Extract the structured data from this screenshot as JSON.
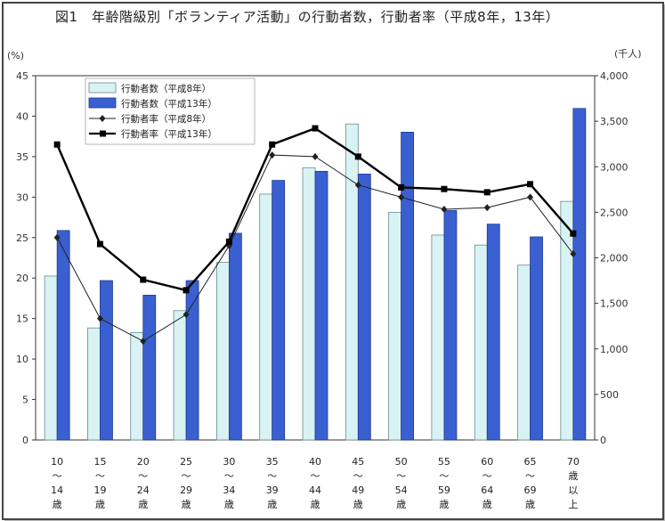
{
  "chart_data": {
    "type": "bar",
    "title": "図1　年齢階級別「ボランティア活動」の行動者数，行動者率（平成8年，13年）",
    "left_axis_unit": "(%)",
    "right_axis_unit": "(千人)",
    "y_left": {
      "min": 0,
      "max": 45,
      "step": 5,
      "ticks": [
        "0",
        "5",
        "10",
        "15",
        "20",
        "25",
        "30",
        "35",
        "40",
        "45"
      ]
    },
    "y_right": {
      "min": 0,
      "max": 4000,
      "step": 500,
      "ticks": [
        "0",
        "500",
        "1,000",
        "1,500",
        "2,000",
        "2,500",
        "3,000",
        "3,500",
        "4,000"
      ]
    },
    "grid": false,
    "legend_position": "top-left",
    "categories": [
      [
        "10",
        "～",
        "14",
        "歳"
      ],
      [
        "15",
        "～",
        "19",
        "歳"
      ],
      [
        "20",
        "～",
        "24",
        "歳"
      ],
      [
        "25",
        "～",
        "29",
        "歳"
      ],
      [
        "30",
        "～",
        "34",
        "歳"
      ],
      [
        "35",
        "～",
        "39",
        "歳"
      ],
      [
        "40",
        "～",
        "44",
        "歳"
      ],
      [
        "45",
        "～",
        "49",
        "歳"
      ],
      [
        "50",
        "～",
        "54",
        "歳"
      ],
      [
        "55",
        "～",
        "59",
        "歳"
      ],
      [
        "60",
        "～",
        "64",
        "歳"
      ],
      [
        "65",
        "～",
        "69",
        "歳"
      ],
      [
        "70",
        "歳",
        "以",
        "上"
      ]
    ],
    "series": [
      {
        "name": "行動者数（平成8年）",
        "kind": "bar",
        "axis": "right",
        "color": "#d9f3f4",
        "stroke": "#6a8a8c",
        "values": [
          1800,
          1230,
          1180,
          1420,
          1950,
          2700,
          2990,
          3470,
          2500,
          2250,
          2140,
          1920,
          2620
        ]
      },
      {
        "name": "行動者数（平成13年）",
        "kind": "bar",
        "axis": "right",
        "color": "#3a5fd0",
        "stroke": "#1f3a8f",
        "values": [
          2300,
          1750,
          1590,
          1750,
          2270,
          2850,
          2950,
          2920,
          3380,
          2520,
          2370,
          2230,
          3640
        ]
      },
      {
        "name": "行動者率（平成8年）",
        "kind": "line",
        "axis": "left",
        "color": "#222222",
        "marker": "diamond",
        "values": [
          25.0,
          15.0,
          12.2,
          15.5,
          24.0,
          35.2,
          35.0,
          31.5,
          30.0,
          28.5,
          28.7,
          30.0,
          23.0
        ]
      },
      {
        "name": "行動者率（平成13年）",
        "kind": "line",
        "axis": "left",
        "color": "#000000",
        "marker": "square",
        "values": [
          36.5,
          24.2,
          19.8,
          18.5,
          24.5,
          36.5,
          38.5,
          35.0,
          31.2,
          31.0,
          30.6,
          31.6,
          25.5
        ]
      }
    ]
  }
}
